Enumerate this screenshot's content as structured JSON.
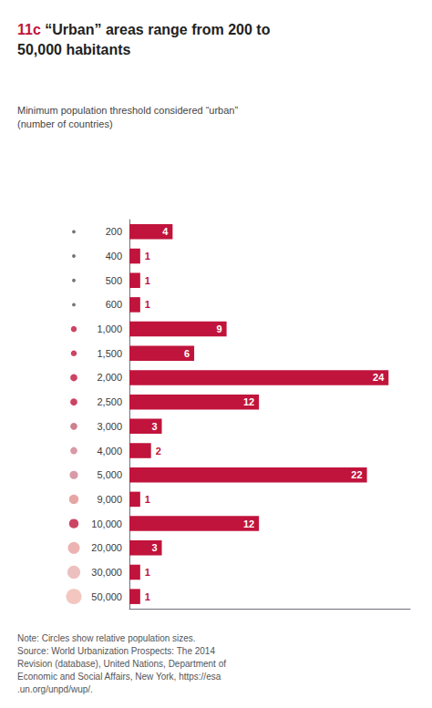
{
  "chart_data": {
    "type": "bar",
    "orientation": "horizontal",
    "title": "11c “Urban” areas range from 200 to\n50,000 habitants",
    "subtitle": "Minimum population threshold considered “urban”\n(number of countries)",
    "note": "Note: Circles show relative population sizes.\nSource: World Urbanization Prospects: The 2014\nRevision (database), United Nations, Department of\nEconomic and Social Affairs, New York, https://esa\n.un.org/unpd/wup/.",
    "categories": [
      "200",
      "400",
      "500",
      "600",
      "1,000",
      "1,500",
      "2,000",
      "2,500",
      "3,000",
      "4,000",
      "5,000",
      "9,000",
      "10,000",
      "20,000",
      "30,000",
      "50,000"
    ],
    "values": [
      4,
      1,
      1,
      1,
      9,
      6,
      24,
      12,
      3,
      2,
      22,
      1,
      12,
      3,
      1,
      1
    ],
    "color": "#c0143c",
    "dots": {
      "sizes": [
        3,
        3,
        3,
        3,
        5,
        5,
        6,
        6,
        6,
        6,
        7,
        8,
        8,
        10,
        11,
        13
      ],
      "colors": [
        "#555555",
        "#555555",
        "#555555",
        "#555555",
        "#c0143c",
        "#c0143c",
        "#c0143c",
        "#c0143c",
        "#c06070",
        "#d08090",
        "#d08090",
        "#e09090",
        "#c0143c",
        "#e8a0a0",
        "#e8b0b0",
        "#f0b8b0"
      ]
    },
    "xlim": [
      0,
      26
    ],
    "xticks": [],
    "grid": false,
    "data_labels": true,
    "tick_labels": "y"
  }
}
